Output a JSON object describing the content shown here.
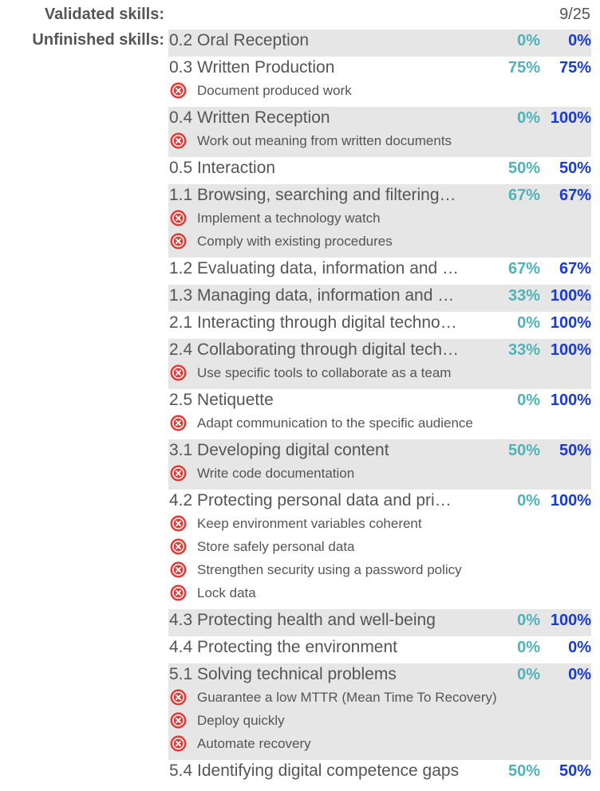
{
  "validated": {
    "label": "Validated skills:",
    "count": "9/25"
  },
  "unfinished": {
    "label": "Unfinished skills:"
  },
  "colors": {
    "pct_a": "#4fb3b8",
    "pct_b": "#1a3bd1",
    "icon_red": "#e53935",
    "row_shade": "#e6e6e6"
  },
  "skills": [
    {
      "name": "0.2 Oral Reception",
      "pct_a": "0%",
      "pct_b": "0%",
      "shaded": true,
      "subs": []
    },
    {
      "name": "0.3 Written Production",
      "pct_a": "75%",
      "pct_b": "75%",
      "shaded": false,
      "subs": [
        "Document produced work"
      ]
    },
    {
      "name": "0.4 Written Reception",
      "pct_a": "0%",
      "pct_b": "100%",
      "shaded": true,
      "subs": [
        "Work out meaning from written documents"
      ]
    },
    {
      "name": "0.5 Interaction",
      "pct_a": "50%",
      "pct_b": "50%",
      "shaded": false,
      "subs": []
    },
    {
      "name": "1.1 Browsing, searching and filtering…",
      "pct_a": "67%",
      "pct_b": "67%",
      "shaded": true,
      "subs": [
        "Implement a technology watch",
        "Comply with existing procedures"
      ]
    },
    {
      "name": "1.2 Evaluating data, information and …",
      "pct_a": "67%",
      "pct_b": "67%",
      "shaded": false,
      "subs": []
    },
    {
      "name": "1.3 Managing data, information and …",
      "pct_a": "33%",
      "pct_b": "100%",
      "shaded": true,
      "subs": []
    },
    {
      "name": "2.1 Interacting through digital techno…",
      "pct_a": "0%",
      "pct_b": "100%",
      "shaded": false,
      "subs": []
    },
    {
      "name": "2.4 Collaborating through digital tech…",
      "pct_a": "33%",
      "pct_b": "100%",
      "shaded": true,
      "subs": [
        "Use specific tools to collaborate as a team"
      ]
    },
    {
      "name": "2.5 Netiquette",
      "pct_a": "0%",
      "pct_b": "100%",
      "shaded": false,
      "subs": [
        "Adapt communication to the specific audience"
      ]
    },
    {
      "name": "3.1 Developing digital content",
      "pct_a": "50%",
      "pct_b": "50%",
      "shaded": true,
      "subs": [
        "Write code documentation"
      ]
    },
    {
      "name": "4.2 Protecting personal data and pri…",
      "pct_a": "0%",
      "pct_b": "100%",
      "shaded": false,
      "subs": [
        "Keep environment variables coherent",
        "Store safely personal data",
        "Strengthen security using a password policy",
        "Lock data"
      ]
    },
    {
      "name": "4.3 Protecting health and well-being",
      "pct_a": "0%",
      "pct_b": "100%",
      "shaded": true,
      "subs": []
    },
    {
      "name": "4.4 Protecting the environment",
      "pct_a": "0%",
      "pct_b": "0%",
      "shaded": false,
      "subs": []
    },
    {
      "name": "5.1 Solving technical problems",
      "pct_a": "0%",
      "pct_b": "0%",
      "shaded": true,
      "subs": [
        "Guarantee a low MTTR (Mean Time To Recovery)",
        "Deploy quickly",
        "Automate recovery"
      ]
    },
    {
      "name": "5.4 Identifying digital competence gaps",
      "pct_a": "50%",
      "pct_b": "50%",
      "shaded": false,
      "subs": []
    }
  ]
}
